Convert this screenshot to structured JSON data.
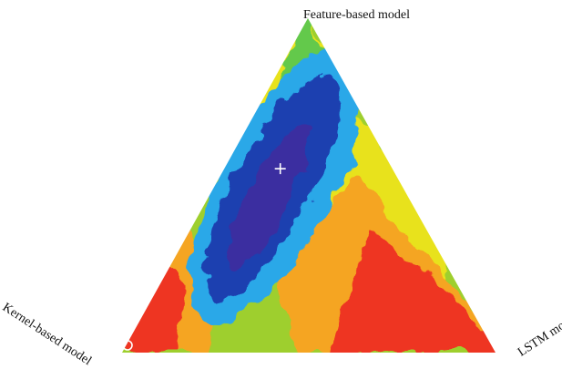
{
  "chart_data": {
    "type": "heatmap",
    "subtype": "ternary",
    "title": "",
    "vertices": {
      "top": "Feature-based model",
      "left": "Kernel-based model",
      "right": "LSTM model"
    },
    "colormap": [
      "#1f3fb0",
      "#3a2fa0",
      "#2aa8e8",
      "#63c94c",
      "#9ecf2e",
      "#e8e21e",
      "#f5a520",
      "#ee3424"
    ],
    "color_meaning": "blue/purple = low (best), red = high",
    "markers": [
      {
        "type": "plus",
        "color": "#ffffff",
        "weights": {
          "top": 0.55,
          "left": 0.3,
          "right": 0.15
        }
      },
      {
        "type": "circle",
        "color": "#ffffff",
        "weights": {
          "top": 0.0,
          "left": 1.0,
          "right": 0.0
        }
      }
    ]
  }
}
